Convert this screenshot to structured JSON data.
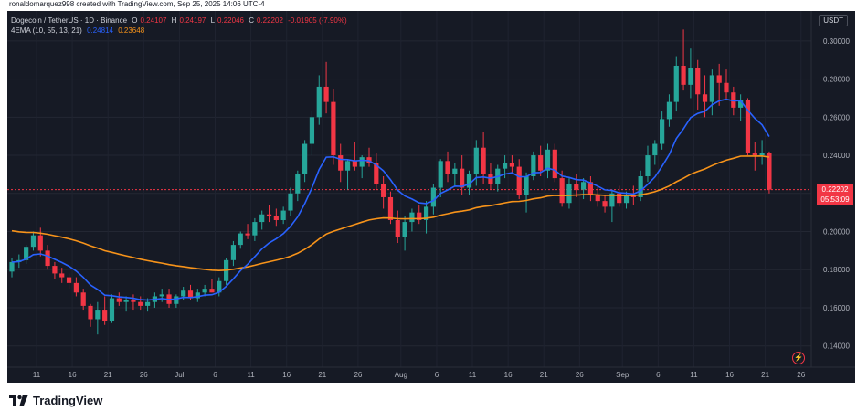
{
  "credit": "ronaldomarquez998 created with TradingView.com, Sep 25, 2025 14:06 UTC-4",
  "legend": {
    "symbol": "Dogecoin / TetherUS · 1D · Binance",
    "o_label": "O",
    "o": "0.24107",
    "h_label": "H",
    "h": "0.24197",
    "l_label": "L",
    "l": "0.22046",
    "c_label": "C",
    "c": "0.22202",
    "change": "-0.01905 (-7.90%)",
    "indicator": "4EMA (10, 55, 13, 21)",
    "ema_fast": "0.24814",
    "ema_slow": "0.23648"
  },
  "currency": "USDT",
  "price_tag": {
    "price": "0.22202",
    "countdown": "05:53:09"
  },
  "brand": "TradingView",
  "colors": {
    "up": "#26a69a",
    "down": "#f23645",
    "ema_fast": "#2962ff",
    "ema_slow": "#f7931a",
    "background": "#161a25"
  },
  "chart_data": {
    "type": "candlestick",
    "title": "Dogecoin / TetherUS · 1D · Binance",
    "ylim": [
      0.125,
      0.31
    ],
    "y_ticks": [
      "0.14000",
      "0.16000",
      "0.18000",
      "0.20000",
      "0.22000",
      "0.24000",
      "0.26000",
      "0.28000",
      "0.30000"
    ],
    "x_tick_labels": [
      {
        "day": 0,
        "label": "11"
      },
      {
        "day": 5,
        "label": "16"
      },
      {
        "day": 10,
        "label": "21"
      },
      {
        "day": 15,
        "label": "26"
      },
      {
        "day": 20,
        "label": "Jul"
      },
      {
        "day": 25,
        "label": "6"
      },
      {
        "day": 30,
        "label": "11"
      },
      {
        "day": 35,
        "label": "16"
      },
      {
        "day": 40,
        "label": "21"
      },
      {
        "day": 45,
        "label": "26"
      },
      {
        "day": 51,
        "label": "Aug"
      },
      {
        "day": 56,
        "label": "6"
      },
      {
        "day": 61,
        "label": "11"
      },
      {
        "day": 66,
        "label": "16"
      },
      {
        "day": 71,
        "label": "21"
      },
      {
        "day": 76,
        "label": "26"
      },
      {
        "day": 82,
        "label": "Sep"
      },
      {
        "day": 87,
        "label": "6"
      },
      {
        "day": 92,
        "label": "11"
      },
      {
        "day": 97,
        "label": "16"
      },
      {
        "day": 102,
        "label": "21"
      },
      {
        "day": 107,
        "label": "26"
      }
    ],
    "candles": [
      [
        0.179,
        0.186,
        0.176,
        0.184
      ],
      [
        0.184,
        0.188,
        0.181,
        0.185
      ],
      [
        0.185,
        0.193,
        0.183,
        0.192
      ],
      [
        0.192,
        0.2,
        0.19,
        0.198
      ],
      [
        0.198,
        0.202,
        0.187,
        0.19
      ],
      [
        0.19,
        0.193,
        0.18,
        0.182
      ],
      [
        0.182,
        0.184,
        0.175,
        0.178
      ],
      [
        0.178,
        0.181,
        0.173,
        0.176
      ],
      [
        0.176,
        0.178,
        0.17,
        0.173
      ],
      [
        0.173,
        0.176,
        0.166,
        0.168
      ],
      [
        0.168,
        0.17,
        0.159,
        0.161
      ],
      [
        0.161,
        0.162,
        0.15,
        0.154
      ],
      [
        0.154,
        0.163,
        0.146,
        0.159
      ],
      [
        0.159,
        0.166,
        0.151,
        0.153
      ],
      [
        0.153,
        0.167,
        0.152,
        0.165
      ],
      [
        0.165,
        0.168,
        0.161,
        0.163
      ],
      [
        0.163,
        0.166,
        0.158,
        0.164
      ],
      [
        0.164,
        0.167,
        0.159,
        0.163
      ],
      [
        0.163,
        0.166,
        0.159,
        0.161
      ],
      [
        0.161,
        0.165,
        0.158,
        0.163
      ],
      [
        0.163,
        0.168,
        0.16,
        0.166
      ],
      [
        0.166,
        0.17,
        0.163,
        0.167
      ],
      [
        0.167,
        0.17,
        0.16,
        0.162
      ],
      [
        0.162,
        0.167,
        0.16,
        0.166
      ],
      [
        0.166,
        0.171,
        0.164,
        0.169
      ],
      [
        0.169,
        0.172,
        0.164,
        0.165
      ],
      [
        0.165,
        0.17,
        0.163,
        0.168
      ],
      [
        0.168,
        0.172,
        0.166,
        0.17
      ],
      [
        0.17,
        0.175,
        0.168,
        0.168
      ],
      [
        0.168,
        0.176,
        0.166,
        0.174
      ],
      [
        0.174,
        0.186,
        0.172,
        0.185
      ],
      [
        0.185,
        0.195,
        0.182,
        0.193
      ],
      [
        0.193,
        0.2,
        0.191,
        0.199
      ],
      [
        0.199,
        0.204,
        0.196,
        0.198
      ],
      [
        0.198,
        0.207,
        0.195,
        0.205
      ],
      [
        0.205,
        0.211,
        0.201,
        0.209
      ],
      [
        0.209,
        0.214,
        0.205,
        0.208
      ],
      [
        0.208,
        0.212,
        0.203,
        0.206
      ],
      [
        0.206,
        0.213,
        0.204,
        0.211
      ],
      [
        0.211,
        0.223,
        0.208,
        0.22
      ],
      [
        0.22,
        0.232,
        0.216,
        0.23
      ],
      [
        0.23,
        0.248,
        0.226,
        0.246
      ],
      [
        0.246,
        0.263,
        0.24,
        0.26
      ],
      [
        0.26,
        0.282,
        0.256,
        0.276
      ],
      [
        0.276,
        0.289,
        0.262,
        0.268
      ],
      [
        0.268,
        0.275,
        0.235,
        0.24
      ],
      [
        0.24,
        0.246,
        0.226,
        0.232
      ],
      [
        0.232,
        0.238,
        0.222,
        0.237
      ],
      [
        0.237,
        0.247,
        0.232,
        0.234
      ],
      [
        0.234,
        0.24,
        0.228,
        0.239
      ],
      [
        0.239,
        0.244,
        0.234,
        0.236
      ],
      [
        0.236,
        0.241,
        0.222,
        0.225
      ],
      [
        0.225,
        0.229,
        0.212,
        0.218
      ],
      [
        0.218,
        0.221,
        0.204,
        0.206
      ],
      [
        0.206,
        0.211,
        0.194,
        0.197
      ],
      [
        0.197,
        0.208,
        0.19,
        0.205
      ],
      [
        0.205,
        0.212,
        0.2,
        0.21
      ],
      [
        0.21,
        0.214,
        0.204,
        0.206
      ],
      [
        0.206,
        0.216,
        0.199,
        0.213
      ],
      [
        0.213,
        0.225,
        0.209,
        0.223
      ],
      [
        0.223,
        0.238,
        0.218,
        0.237
      ],
      [
        0.237,
        0.242,
        0.226,
        0.23
      ],
      [
        0.23,
        0.236,
        0.224,
        0.233
      ],
      [
        0.233,
        0.24,
        0.219,
        0.223
      ],
      [
        0.223,
        0.232,
        0.219,
        0.23
      ],
      [
        0.23,
        0.248,
        0.224,
        0.244
      ],
      [
        0.244,
        0.252,
        0.225,
        0.23
      ],
      [
        0.23,
        0.236,
        0.222,
        0.225
      ],
      [
        0.225,
        0.235,
        0.221,
        0.233
      ],
      [
        0.233,
        0.24,
        0.228,
        0.236
      ],
      [
        0.236,
        0.24,
        0.23,
        0.234
      ],
      [
        0.234,
        0.238,
        0.217,
        0.219
      ],
      [
        0.219,
        0.231,
        0.21,
        0.229
      ],
      [
        0.229,
        0.242,
        0.227,
        0.24
      ],
      [
        0.24,
        0.245,
        0.229,
        0.232
      ],
      [
        0.232,
        0.246,
        0.228,
        0.243
      ],
      [
        0.243,
        0.246,
        0.226,
        0.228
      ],
      [
        0.228,
        0.232,
        0.213,
        0.215
      ],
      [
        0.215,
        0.228,
        0.212,
        0.225
      ],
      [
        0.225,
        0.23,
        0.218,
        0.222
      ],
      [
        0.222,
        0.228,
        0.217,
        0.226
      ],
      [
        0.226,
        0.229,
        0.216,
        0.219
      ],
      [
        0.219,
        0.224,
        0.213,
        0.216
      ],
      [
        0.216,
        0.219,
        0.21,
        0.213
      ],
      [
        0.213,
        0.222,
        0.205,
        0.22
      ],
      [
        0.22,
        0.224,
        0.213,
        0.215
      ],
      [
        0.215,
        0.221,
        0.212,
        0.219
      ],
      [
        0.219,
        0.224,
        0.214,
        0.218
      ],
      [
        0.218,
        0.232,
        0.216,
        0.229
      ],
      [
        0.229,
        0.245,
        0.226,
        0.24
      ],
      [
        0.24,
        0.248,
        0.235,
        0.246
      ],
      [
        0.246,
        0.263,
        0.243,
        0.259
      ],
      [
        0.259,
        0.272,
        0.255,
        0.268
      ],
      [
        0.268,
        0.292,
        0.263,
        0.287
      ],
      [
        0.287,
        0.306,
        0.274,
        0.277
      ],
      [
        0.277,
        0.296,
        0.27,
        0.286
      ],
      [
        0.286,
        0.29,
        0.264,
        0.272
      ],
      [
        0.272,
        0.282,
        0.26,
        0.268
      ],
      [
        0.268,
        0.285,
        0.261,
        0.282
      ],
      [
        0.282,
        0.288,
        0.266,
        0.278
      ],
      [
        0.278,
        0.285,
        0.269,
        0.273
      ],
      [
        0.273,
        0.276,
        0.261,
        0.265
      ],
      [
        0.265,
        0.272,
        0.258,
        0.269
      ],
      [
        0.269,
        0.27,
        0.24,
        0.241
      ],
      [
        0.241,
        0.247,
        0.232,
        0.24
      ],
      [
        0.24,
        0.248,
        0.235,
        0.241
      ],
      [
        0.241,
        0.242,
        0.22,
        0.222
      ]
    ],
    "ema_fast_period": 10,
    "ema_slow_period": 55
  }
}
